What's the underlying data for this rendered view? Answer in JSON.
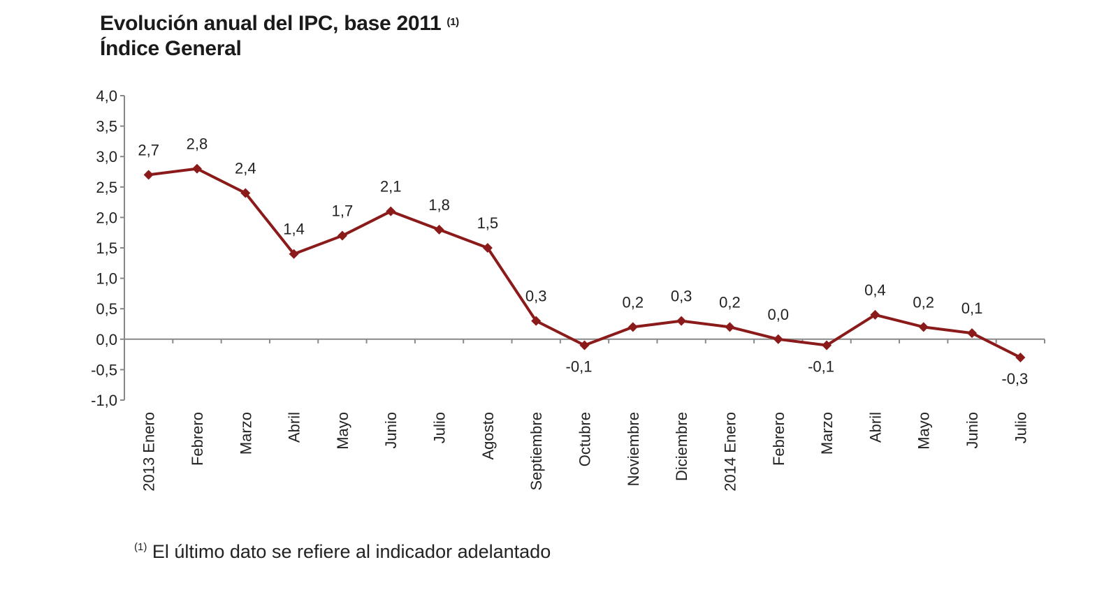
{
  "chart_data": {
    "type": "line",
    "title": "Evolución anual del IPC, base 2011",
    "title_note": "(1)",
    "subtitle": "Índice General",
    "categories": [
      "2013 Enero",
      "Febrero",
      "Marzo",
      "Abril",
      "Mayo",
      "Junio",
      "Julio",
      "Agosto",
      "Septiembre",
      "Octubre",
      "Noviembre",
      "Diciembre",
      "2014 Enero",
      "Febrero",
      "Marzo",
      "Abril",
      "Mayo",
      "Junio",
      "Julio"
    ],
    "values": [
      2.7,
      2.8,
      2.4,
      1.4,
      1.7,
      2.1,
      1.8,
      1.5,
      0.3,
      -0.1,
      0.2,
      0.3,
      0.2,
      0.0,
      -0.1,
      0.4,
      0.2,
      0.1,
      -0.3
    ],
    "data_labels": [
      "2,7",
      "2,8",
      "2,4",
      "1,4",
      "1,7",
      "2,1",
      "1,8",
      "1,5",
      "0,3",
      "-0,1",
      "0,2",
      "0,3",
      "0,2",
      "0,0",
      "-0,1",
      "0,4",
      "0,2",
      "0,1",
      "-0,3"
    ],
    "ylim": [
      -1.0,
      4.0
    ],
    "yticks": [
      "-1,0",
      "-0,5",
      "0,0",
      "0,5",
      "1,0",
      "1,5",
      "2,0",
      "2,5",
      "3,0",
      "3,5",
      "4,0"
    ],
    "xlabel": "",
    "ylabel": "",
    "grid": false,
    "marker": "diamond",
    "color": "#8b1a1a",
    "footnote_mark": "(1)",
    "footnote": "El último dato se refiere al indicador adelantado"
  }
}
